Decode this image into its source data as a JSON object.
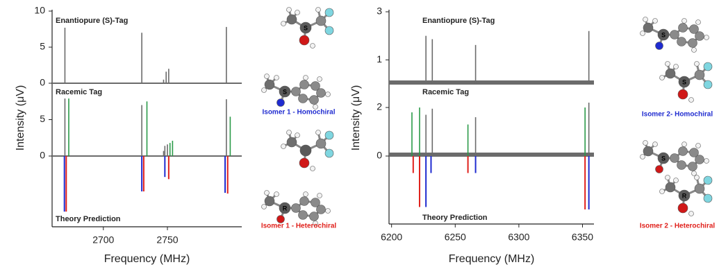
{
  "chart_data": [
    {
      "type": "spectrum",
      "xlabel": "Frequency (MHz)",
      "ylabel": "Intensity (μV)",
      "xlim": [
        2660,
        2808
      ],
      "xticks": [
        2700,
        2750
      ],
      "panels": [
        {
          "label": "Enantiopure (S)-Tag",
          "ylim": [
            0,
            10
          ],
          "yticks": [
            0,
            5,
            10
          ],
          "series": [
            {
              "color": "#6b6b6b",
              "x": [
                2670,
                2730,
                2747,
                2749,
                2751,
                2796
              ],
              "values": [
                7.7,
                7,
                0.5,
                1.6,
                2,
                7.8
              ]
            }
          ]
        },
        {
          "label": "Racemic Tag",
          "ylim": [
            0,
            10
          ],
          "yticks": [
            0,
            5
          ],
          "series": [
            {
              "color": "#6b6b6b",
              "x": [
                2670,
                2730,
                2747,
                2748,
                2750,
                2796
              ],
              "values": [
                7.9,
                7,
                0.7,
                1.4,
                1.6,
                7.8
              ]
            },
            {
              "color": "#2a9a48",
              "x": [
                2673,
                2734,
                2752,
                2754,
                2799
              ],
              "values": [
                7.9,
                7.5,
                1.8,
                2.1,
                5.4
              ]
            }
          ]
        },
        {
          "label": "Theory Prediction",
          "ylim": [
            -9.8,
            0
          ],
          "series": [
            {
              "name": "Isomer 1 - Homochiral",
              "color": "#1f2bd0",
              "x": [
                2669.6,
                2730,
                2748,
                2795
              ],
              "values": [
                -7.7,
                -4.9,
                -2.9,
                -5.1
              ]
            },
            {
              "name": "Isomer 1 - Heterochiral",
              "color": "#e0201b",
              "x": [
                2671,
                2731.5,
                2751,
                2797
              ],
              "values": [
                -7.7,
                -4.9,
                -3.2,
                -5.2
              ]
            }
          ]
        }
      ]
    },
    {
      "type": "spectrum",
      "xlabel": "Frequency (MHz)",
      "ylabel": "Intensity (μV)",
      "xlim": [
        6198,
        6359
      ],
      "xticks": [
        6200,
        6250,
        6300,
        6350
      ],
      "panels": [
        {
          "label": "Enantiopure (S)-Tag",
          "ylim": [
            0,
            3
          ],
          "yticks": [
            1,
            3
          ],
          "series": [
            {
              "color": "#6b6b6b",
              "x": [
                6227,
                6232,
                6266,
                6355
              ],
              "values": [
                2,
                1.86,
                1.62,
                2.2
              ]
            }
          ]
        },
        {
          "label": "Racemic Tag",
          "ylim": [
            0,
            3
          ],
          "yticks": [
            0,
            2
          ],
          "series": [
            {
              "color": "#6b6b6b",
              "x": [
                6227,
                6232,
                6266,
                6355
              ],
              "values": [
                1.7,
                1.95,
                1.6,
                2.2
              ]
            },
            {
              "color": "#2a9a48",
              "x": [
                6216,
                6222,
                6260,
                6352
              ],
              "values": [
                1.8,
                2,
                1.3,
                2
              ]
            }
          ]
        },
        {
          "label": "Theory Prediction",
          "ylim": [
            -2.8,
            0
          ],
          "series": [
            {
              "name": "Isomer 2- Homochiral",
              "color": "#1f2bd0",
              "x": [
                6227,
                6231,
                6266,
                6355
              ],
              "values": [
                -2.1,
                -0.7,
                -0.7,
                -2.2
              ]
            },
            {
              "name": "Isomer 2 - Heterochiral",
              "color": "#e0201b",
              "x": [
                6217,
                6222,
                6260,
                6352
              ],
              "values": [
                -0.7,
                -2.1,
                -0.7,
                -2.2
              ]
            }
          ]
        }
      ]
    }
  ],
  "molecule_labels": [
    [
      "S",
      "S",
      "R"
    ],
    [
      "S",
      "S",
      "S",
      "R"
    ]
  ]
}
